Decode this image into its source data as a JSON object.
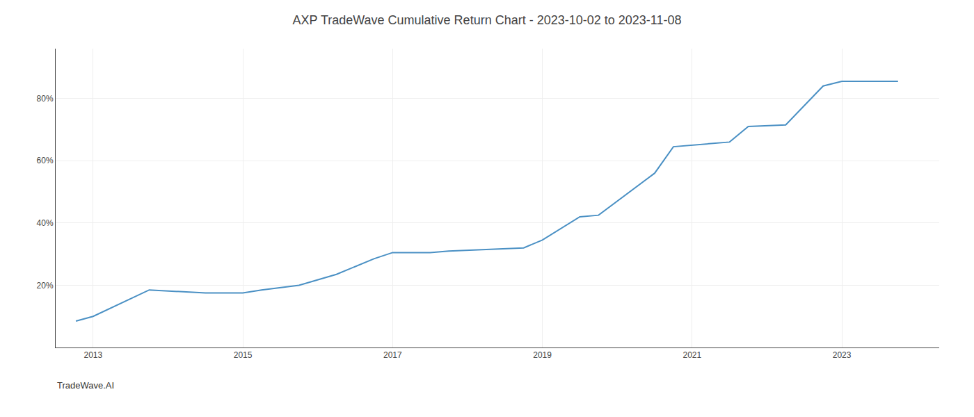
{
  "chart_data": {
    "type": "line",
    "title": "AXP TradeWave Cumulative Return Chart - 2023-10-02 to 2023-11-08",
    "annotations": [
      "TradeWave.AI"
    ],
    "x": [
      2012.77,
      2013.0,
      2013.75,
      2014.5,
      2015.0,
      2015.25,
      2015.75,
      2016.25,
      2016.75,
      2017.0,
      2017.5,
      2017.75,
      2018.25,
      2018.75,
      2019.0,
      2019.5,
      2019.75,
      2020.5,
      2020.75,
      2021.25,
      2021.5,
      2021.75,
      2022.25,
      2022.75,
      2023.0,
      2023.75
    ],
    "values": [
      0.085,
      0.1,
      0.185,
      0.175,
      0.175,
      0.185,
      0.2,
      0.235,
      0.285,
      0.305,
      0.305,
      0.31,
      0.315,
      0.32,
      0.345,
      0.42,
      0.425,
      0.56,
      0.645,
      0.655,
      0.66,
      0.71,
      0.715,
      0.84,
      0.855,
      0.855
    ],
    "color": "#4a90c4",
    "xlim": [
      2012.5,
      2024.3
    ],
    "ylim": [
      0.0,
      0.96
    ],
    "xticks": [
      2013,
      2015,
      2017,
      2019,
      2021,
      2023
    ],
    "yticks": [
      {
        "value": 0.2,
        "label": "20%"
      },
      {
        "value": 0.4,
        "label": "40%"
      },
      {
        "value": 0.6,
        "label": "60%"
      },
      {
        "value": 0.8,
        "label": "80%"
      }
    ],
    "grid": true
  }
}
